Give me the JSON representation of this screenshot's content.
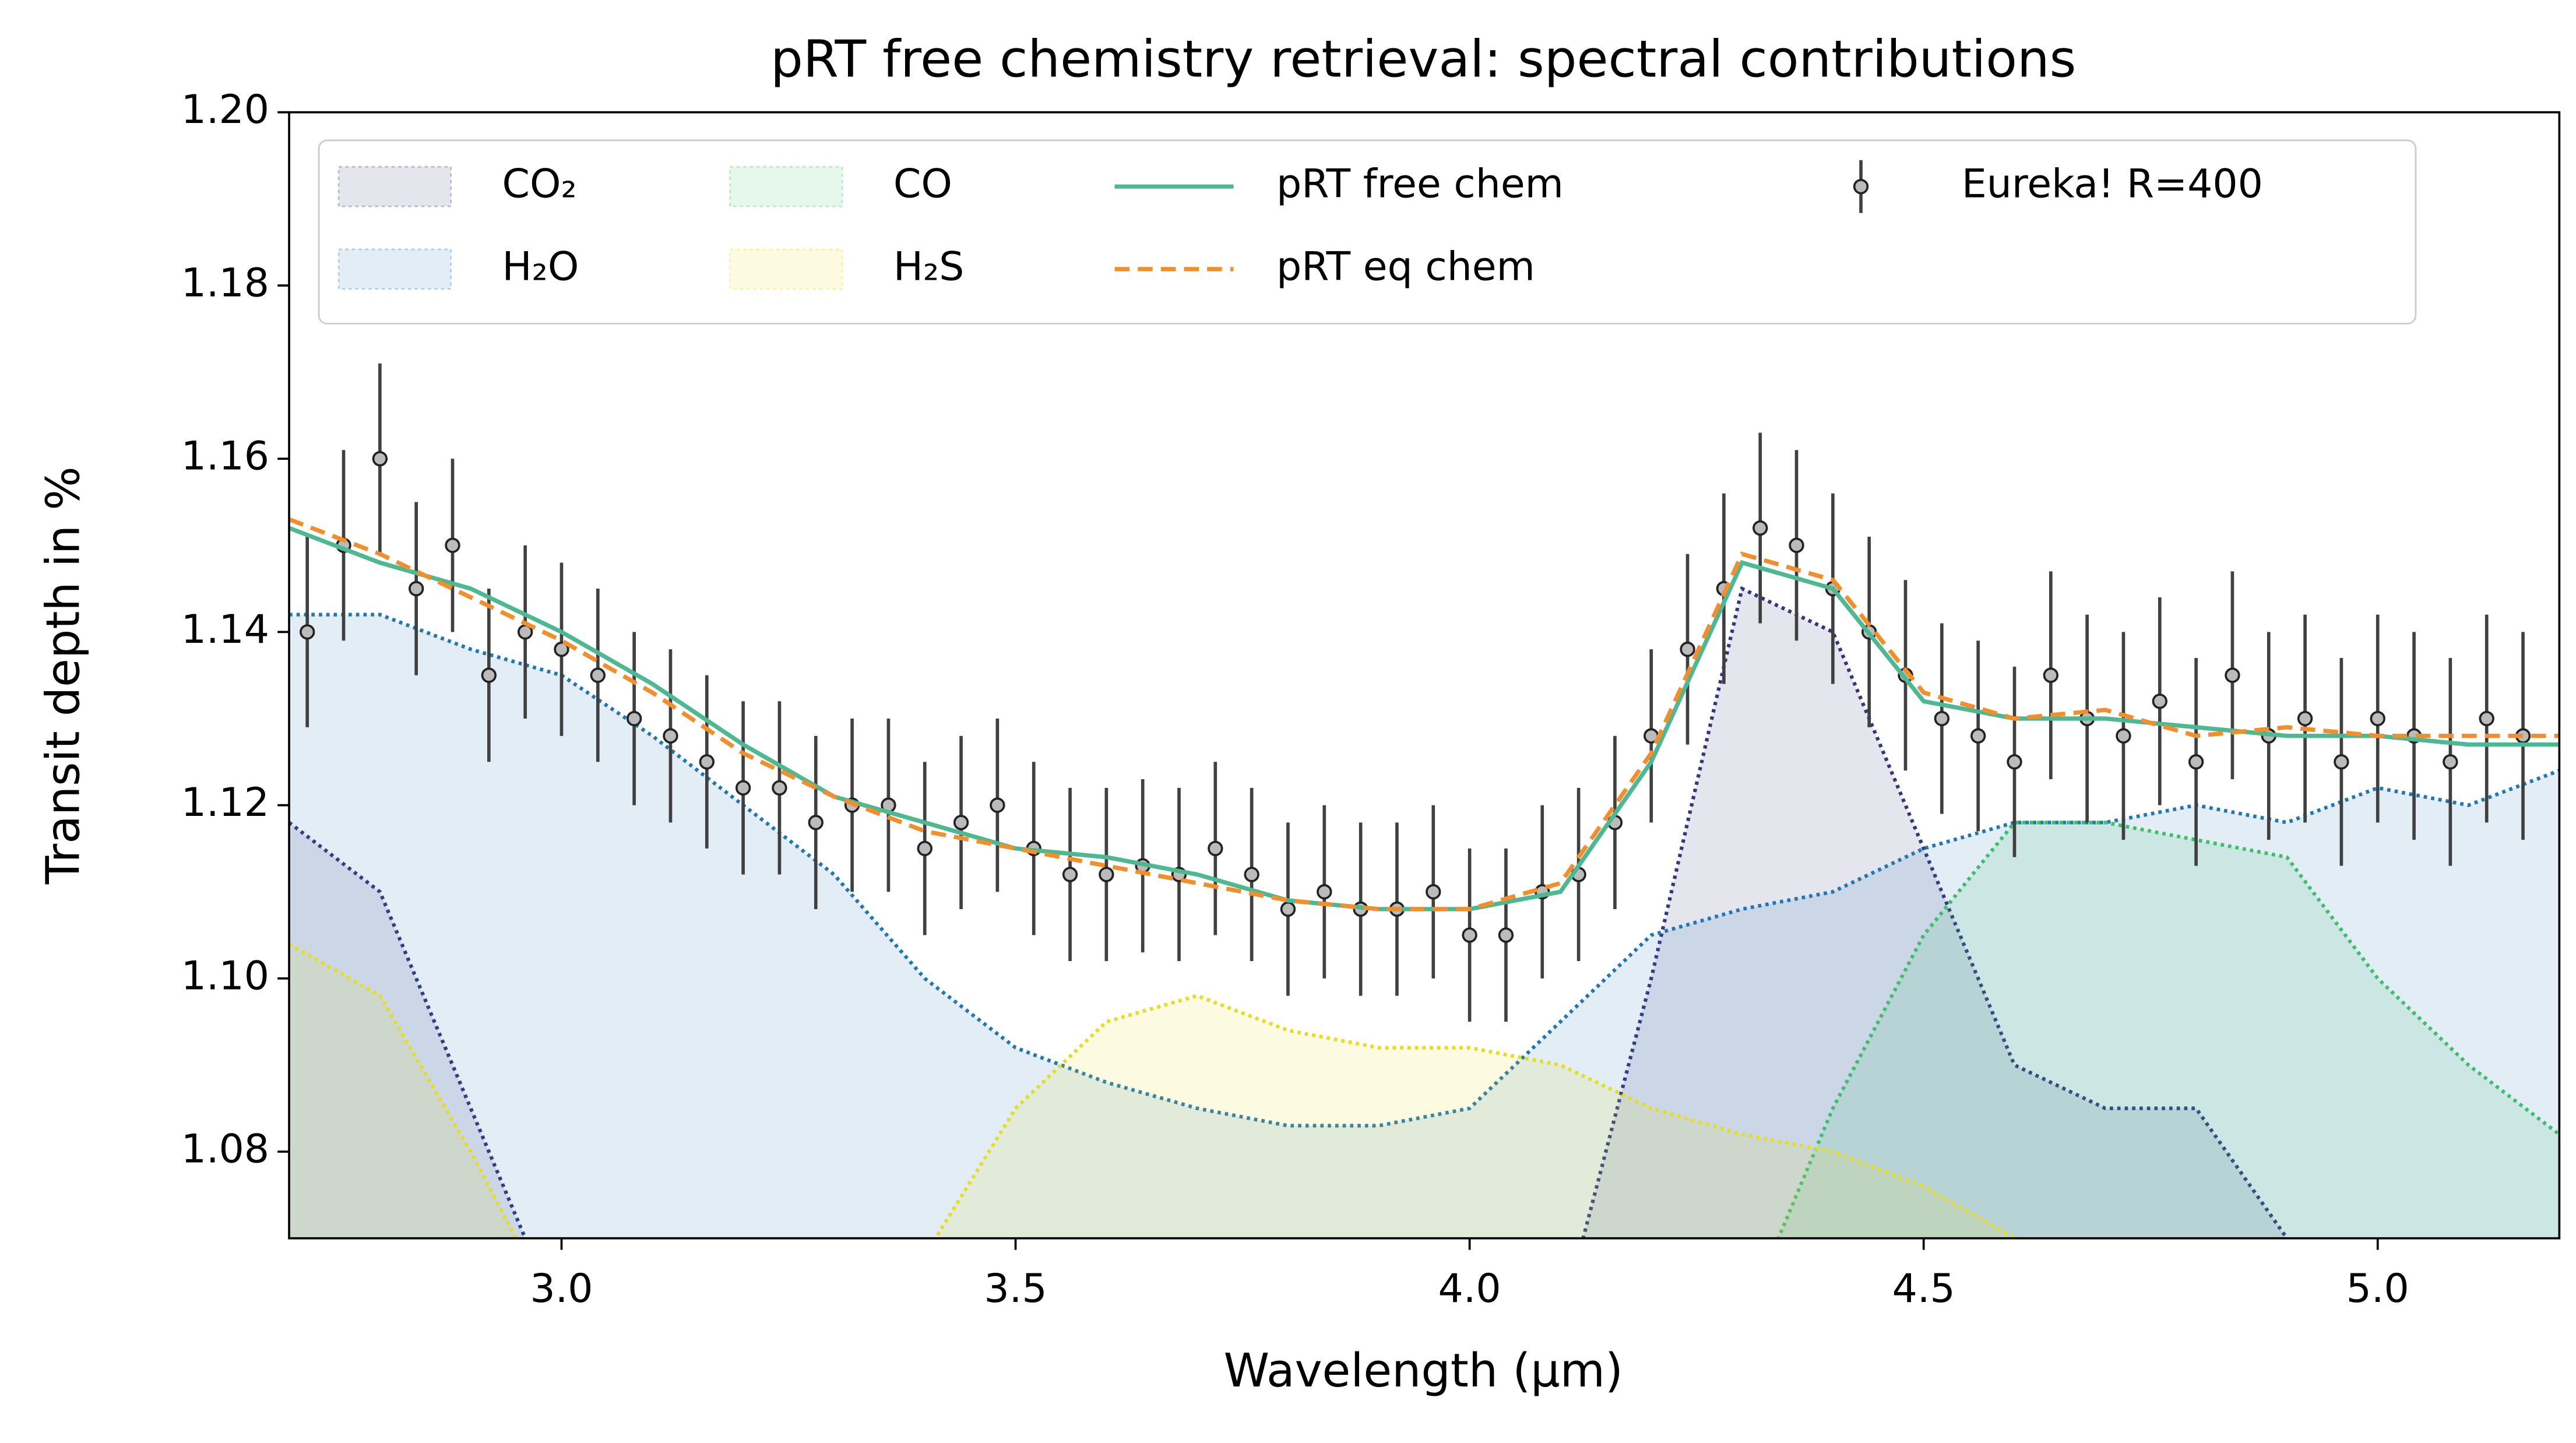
{
  "chart_data": {
    "type": "line",
    "title": "pRT free chemistry retrieval: spectral contributions",
    "x_label": "Wavelength (µm)",
    "y_label": "Transit depth in %",
    "xlim": [
      2.7,
      5.2
    ],
    "ylim": [
      1.07,
      1.2
    ],
    "xticks": [
      {
        "value": 3,
        "label": "3.0"
      },
      3.5,
      {
        "value": 4,
        "label": "4.0"
      },
      4.5,
      {
        "value": 5,
        "label": "5.0"
      }
    ],
    "yticks": [
      1.08,
      {
        "value": 1.1,
        "label": "1.10"
      },
      1.12,
      1.14,
      1.16,
      1.18,
      {
        "value": 1.2,
        "label": "1.20"
      }
    ],
    "x": [
      2.7,
      2.8,
      2.9,
      3.0,
      3.1,
      3.2,
      3.3,
      3.4,
      3.5,
      3.6,
      3.7,
      3.8,
      3.9,
      4.0,
      4.1,
      4.2,
      4.3,
      4.4,
      4.5,
      4.6,
      4.7,
      4.8,
      4.9,
      5.0,
      5.1,
      5.2
    ],
    "contributions": [
      {
        "name": "CO₂",
        "color": "#35357f",
        "values": [
          1.118,
          1.11,
          1.085,
          1.06,
          1.06,
          1.06,
          1.06,
          1.06,
          1.06,
          1.06,
          1.06,
          1.06,
          1.06,
          1.06,
          1.06,
          1.1,
          1.145,
          1.14,
          1.115,
          1.09,
          1.085,
          1.085,
          1.07,
          1.06,
          1.06,
          1.06
        ]
      },
      {
        "name": "H₂O",
        "color": "#1f77b4",
        "values": [
          1.142,
          1.142,
          1.138,
          1.135,
          1.128,
          1.12,
          1.112,
          1.1,
          1.092,
          1.088,
          1.085,
          1.083,
          1.083,
          1.085,
          1.095,
          1.105,
          1.108,
          1.11,
          1.115,
          1.118,
          1.118,
          1.12,
          1.118,
          1.122,
          1.12,
          1.124
        ]
      },
      {
        "name": "CO",
        "color": "#3dbf6a",
        "values": [
          1.06,
          1.06,
          1.06,
          1.06,
          1.06,
          1.06,
          1.06,
          1.06,
          1.06,
          1.06,
          1.06,
          1.06,
          1.06,
          1.06,
          1.06,
          1.06,
          1.06,
          1.085,
          1.105,
          1.118,
          1.118,
          1.116,
          1.114,
          1.1,
          1.09,
          1.082
        ]
      },
      {
        "name": "H₂S",
        "color": "#e6de1c",
        "values": [
          1.104,
          1.098,
          1.08,
          1.06,
          1.06,
          1.06,
          1.06,
          1.068,
          1.085,
          1.095,
          1.098,
          1.094,
          1.092,
          1.092,
          1.09,
          1.085,
          1.082,
          1.08,
          1.076,
          1.07,
          1.06,
          1.06,
          1.06,
          1.06,
          1.06,
          1.06
        ]
      }
    ],
    "series": [
      {
        "name": "pRT free chem",
        "color": "#4db892",
        "dash": "solid",
        "values": [
          1.152,
          1.148,
          1.145,
          1.14,
          1.134,
          1.127,
          1.121,
          1.118,
          1.115,
          1.114,
          1.112,
          1.109,
          1.108,
          1.108,
          1.11,
          1.125,
          1.148,
          1.145,
          1.132,
          1.13,
          1.13,
          1.129,
          1.128,
          1.128,
          1.127,
          1.127
        ]
      },
      {
        "name": "pRT eq chem",
        "color": "#f28e2b",
        "dash": "dashed",
        "values": [
          1.153,
          1.149,
          1.144,
          1.139,
          1.133,
          1.126,
          1.121,
          1.117,
          1.115,
          1.113,
          1.111,
          1.109,
          1.108,
          1.108,
          1.111,
          1.126,
          1.149,
          1.146,
          1.133,
          1.13,
          1.131,
          1.128,
          1.129,
          1.128,
          1.128,
          1.128
        ]
      }
    ],
    "observations": {
      "name": "Eureka! R=400",
      "color": "#404040",
      "x": [
        2.72,
        2.76,
        2.8,
        2.84,
        2.88,
        2.92,
        2.96,
        3.0,
        3.04,
        3.08,
        3.12,
        3.16,
        3.2,
        3.24,
        3.28,
        3.32,
        3.36,
        3.4,
        3.44,
        3.48,
        3.52,
        3.56,
        3.6,
        3.64,
        3.68,
        3.72,
        3.76,
        3.8,
        3.84,
        3.88,
        3.92,
        3.96,
        4.0,
        4.04,
        4.08,
        4.12,
        4.16,
        4.2,
        4.24,
        4.28,
        4.32,
        4.36,
        4.4,
        4.44,
        4.48,
        4.52,
        4.56,
        4.6,
        4.64,
        4.68,
        4.72,
        4.76,
        4.8,
        4.84,
        4.88,
        4.92,
        4.96,
        5.0,
        5.04,
        5.08,
        5.12,
        5.16
      ],
      "values": [
        1.14,
        1.15,
        1.16,
        1.145,
        1.15,
        1.135,
        1.14,
        1.138,
        1.135,
        1.13,
        1.128,
        1.125,
        1.122,
        1.122,
        1.118,
        1.12,
        1.12,
        1.115,
        1.118,
        1.12,
        1.115,
        1.112,
        1.112,
        1.113,
        1.112,
        1.115,
        1.112,
        1.108,
        1.11,
        1.108,
        1.108,
        1.11,
        1.105,
        1.105,
        1.11,
        1.112,
        1.118,
        1.128,
        1.138,
        1.145,
        1.152,
        1.15,
        1.145,
        1.14,
        1.135,
        1.13,
        1.128,
        1.125,
        1.135,
        1.13,
        1.128,
        1.132,
        1.125,
        1.135,
        1.128,
        1.13,
        1.125,
        1.13,
        1.128,
        1.125,
        1.13,
        1.128
      ],
      "errors": [
        0.011,
        0.011,
        0.011,
        0.01,
        0.01,
        0.01,
        0.01,
        0.01,
        0.01,
        0.01,
        0.01,
        0.01,
        0.01,
        0.01,
        0.01,
        0.01,
        0.01,
        0.01,
        0.01,
        0.01,
        0.01,
        0.01,
        0.01,
        0.01,
        0.01,
        0.01,
        0.01,
        0.01,
        0.01,
        0.01,
        0.01,
        0.01,
        0.01,
        0.01,
        0.01,
        0.01,
        0.01,
        0.01,
        0.011,
        0.011,
        0.011,
        0.011,
        0.011,
        0.011,
        0.011,
        0.011,
        0.011,
        0.011,
        0.012,
        0.012,
        0.012,
        0.012,
        0.012,
        0.012,
        0.012,
        0.012,
        0.012,
        0.012,
        0.012,
        0.012,
        0.012,
        0.012
      ]
    }
  }
}
